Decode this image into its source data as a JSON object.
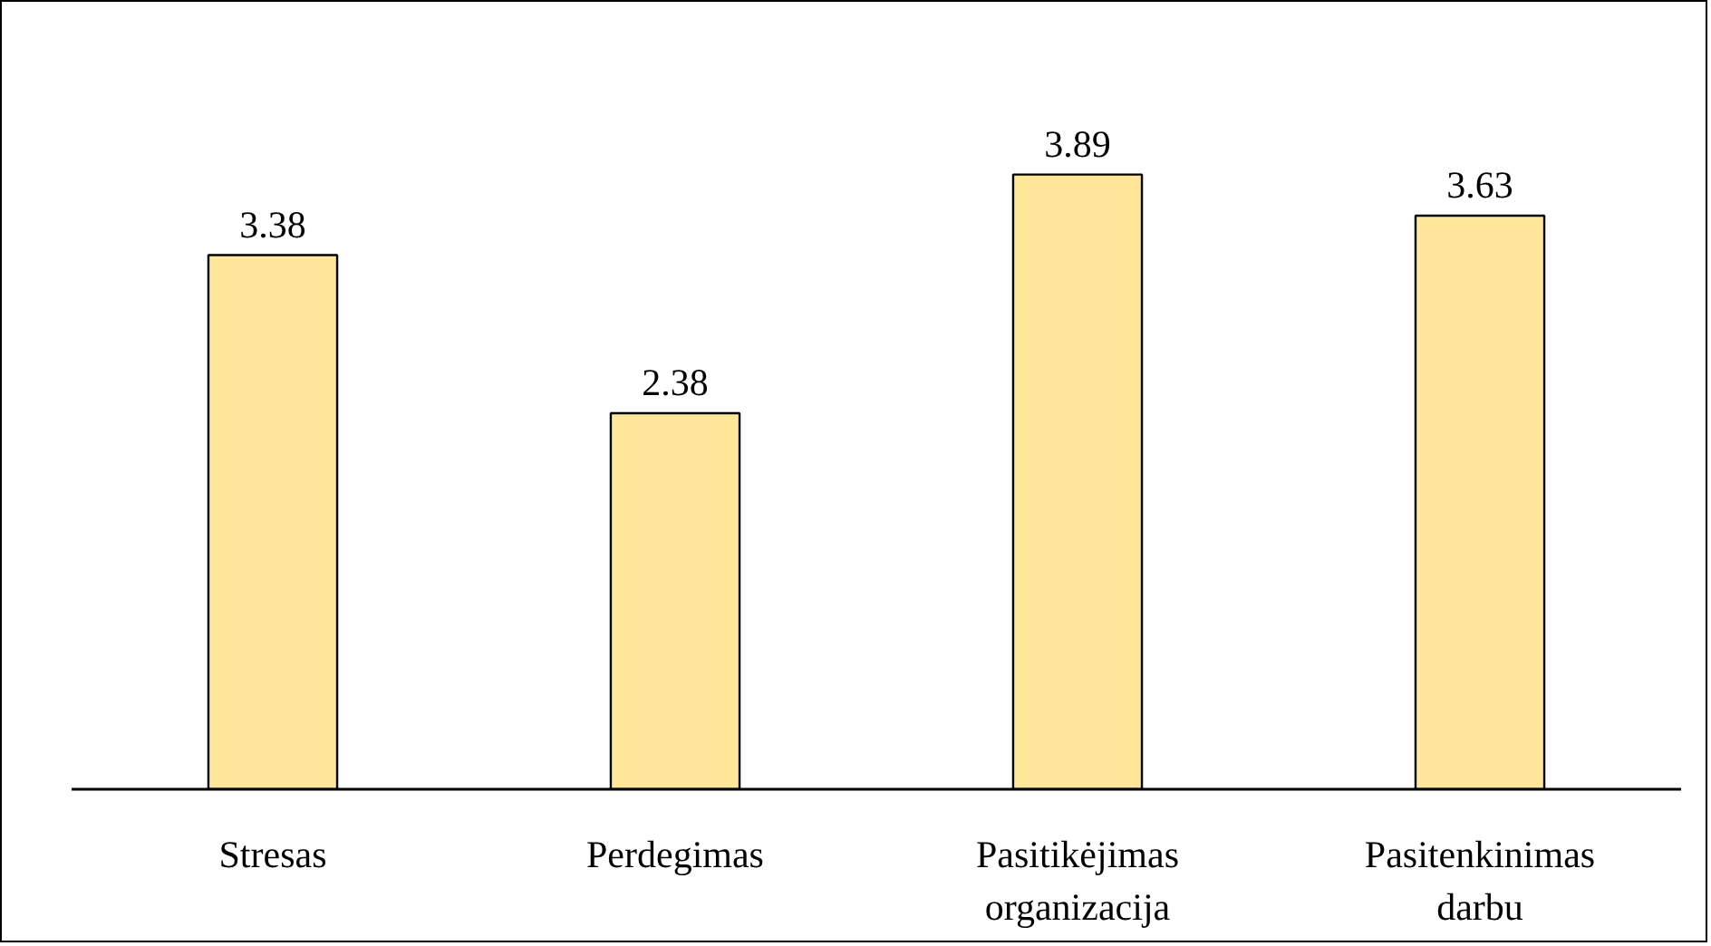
{
  "chart_data": {
    "type": "bar",
    "categories": [
      "Stresas",
      "Perdegimas",
      "Pasitikėjimas organizacija",
      "Pasitenkinimas darbu"
    ],
    "values": [
      3.38,
      2.38,
      3.89,
      3.63
    ],
    "color": "#ffe699",
    "data_labels": true
  }
}
